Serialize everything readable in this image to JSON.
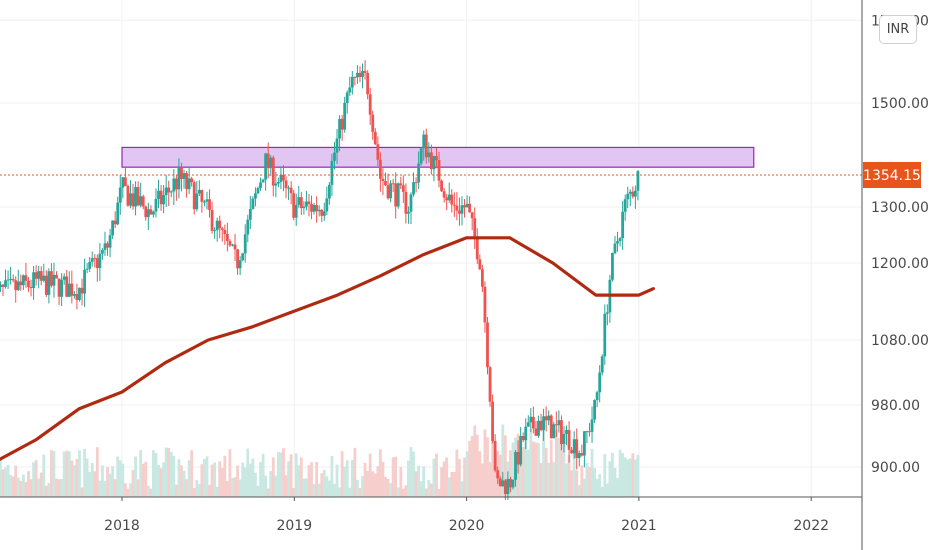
{
  "currency": "INR",
  "price_label": "1354.15",
  "colors": {
    "up": "#26a69a",
    "down": "#ef5350",
    "sma": "#b02a12",
    "zone_fill": "#e2c6f2",
    "zone_stroke": "#a020c0",
    "price_line": "#e8541c",
    "grid": "#f0f0f0",
    "axis": "#555555"
  },
  "chart_data": {
    "type": "candlestick",
    "title": "",
    "currency": "INR",
    "last_price": 1354.15,
    "y_ticks": [
      "1700.00",
      "1500.00",
      "1300.00",
      "1200.00",
      "1080.00",
      "980.00",
      "900.00"
    ],
    "x_ticks": [
      "2018",
      "2019",
      "2020",
      "2021",
      "2022"
    ],
    "y_range_visible": [
      860,
      1720
    ],
    "resistance_zone": {
      "from": "2018-01",
      "to": "2021-09",
      "low": 1370,
      "high": 1410
    },
    "moving_average": {
      "dates": [
        "2017-04",
        "2017-07",
        "2017-10",
        "2018-01",
        "2018-04",
        "2018-07",
        "2018-10",
        "2019-01",
        "2019-04",
        "2019-07",
        "2019-10",
        "2020-01",
        "2020-04",
        "2020-07",
        "2020-10",
        "2021-01",
        "2021-02"
      ],
      "values": [
        905,
        935,
        975,
        1000,
        1045,
        1080,
        1100,
        1125,
        1150,
        1180,
        1215,
        1245,
        1245,
        1200,
        1150,
        1150,
        1160
      ]
    },
    "price_path": {
      "dates": [
        "2017-04",
        "2017-07",
        "2017-10",
        "2017-12",
        "2018-01",
        "2018-03",
        "2018-05",
        "2018-07",
        "2018-09",
        "2018-11",
        "2019-01",
        "2019-03",
        "2019-05",
        "2019-06",
        "2019-07",
        "2019-09",
        "2019-10",
        "2019-12",
        "2020-01",
        "2020-02",
        "2020-03",
        "2020-04",
        "2020-05",
        "2020-06",
        "2020-08",
        "2020-09",
        "2020-10",
        "2020-11",
        "2020-12",
        "2021-01"
      ],
      "values": [
        1150,
        1170,
        1160,
        1230,
        1330,
        1290,
        1350,
        1290,
        1200,
        1380,
        1300,
        1300,
        1550,
        1560,
        1350,
        1300,
        1420,
        1300,
        1300,
        1200,
        880,
        880,
        940,
        960,
        940,
        920,
        980,
        1180,
        1300,
        1354.15
      ]
    }
  }
}
